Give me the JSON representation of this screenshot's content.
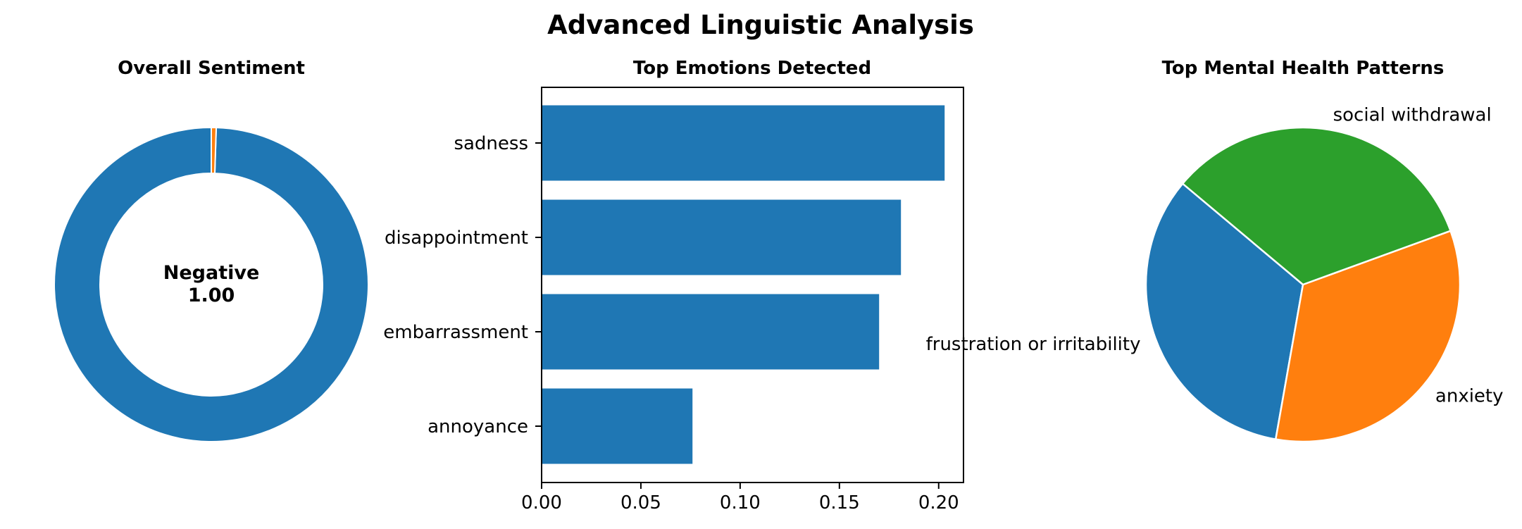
{
  "figure_title": "Advanced Linguistic Analysis",
  "colors": {
    "blue": "#1f77b4",
    "orange": "#ff7f0e",
    "green": "#2ca02c"
  },
  "chart_data": [
    {
      "type": "pie",
      "variant": "donut",
      "title": "Overall Sentiment",
      "center_label": "Negative",
      "center_value": "1.00",
      "slices": [
        {
          "value": 0.995,
          "color": "#1f77b4"
        },
        {
          "value": 0.005,
          "color": "#ff7f0e"
        }
      ]
    },
    {
      "type": "bar",
      "orientation": "horizontal",
      "title": "Top Emotions Detected",
      "categories": [
        "sadness",
        "disappointment",
        "embarrassment",
        "annoyance"
      ],
      "values": [
        0.203,
        0.181,
        0.17,
        0.076
      ],
      "xlim": [
        0,
        0.2125
      ],
      "xticks": [
        "0.00",
        "0.05",
        "0.10",
        "0.15",
        "0.20"
      ],
      "xtick_values": [
        0,
        0.05,
        0.1,
        0.15,
        0.2
      ],
      "color": "#1f77b4"
    },
    {
      "type": "pie",
      "title": "Top Mental Health Patterns",
      "slices": [
        {
          "label": "frustration or irritability",
          "value": 1,
          "color": "#1f77b4"
        },
        {
          "label": "anxiety",
          "value": 1,
          "color": "#ff7f0e"
        },
        {
          "label": "social withdrawal",
          "value": 1,
          "color": "#2ca02c"
        }
      ]
    }
  ]
}
